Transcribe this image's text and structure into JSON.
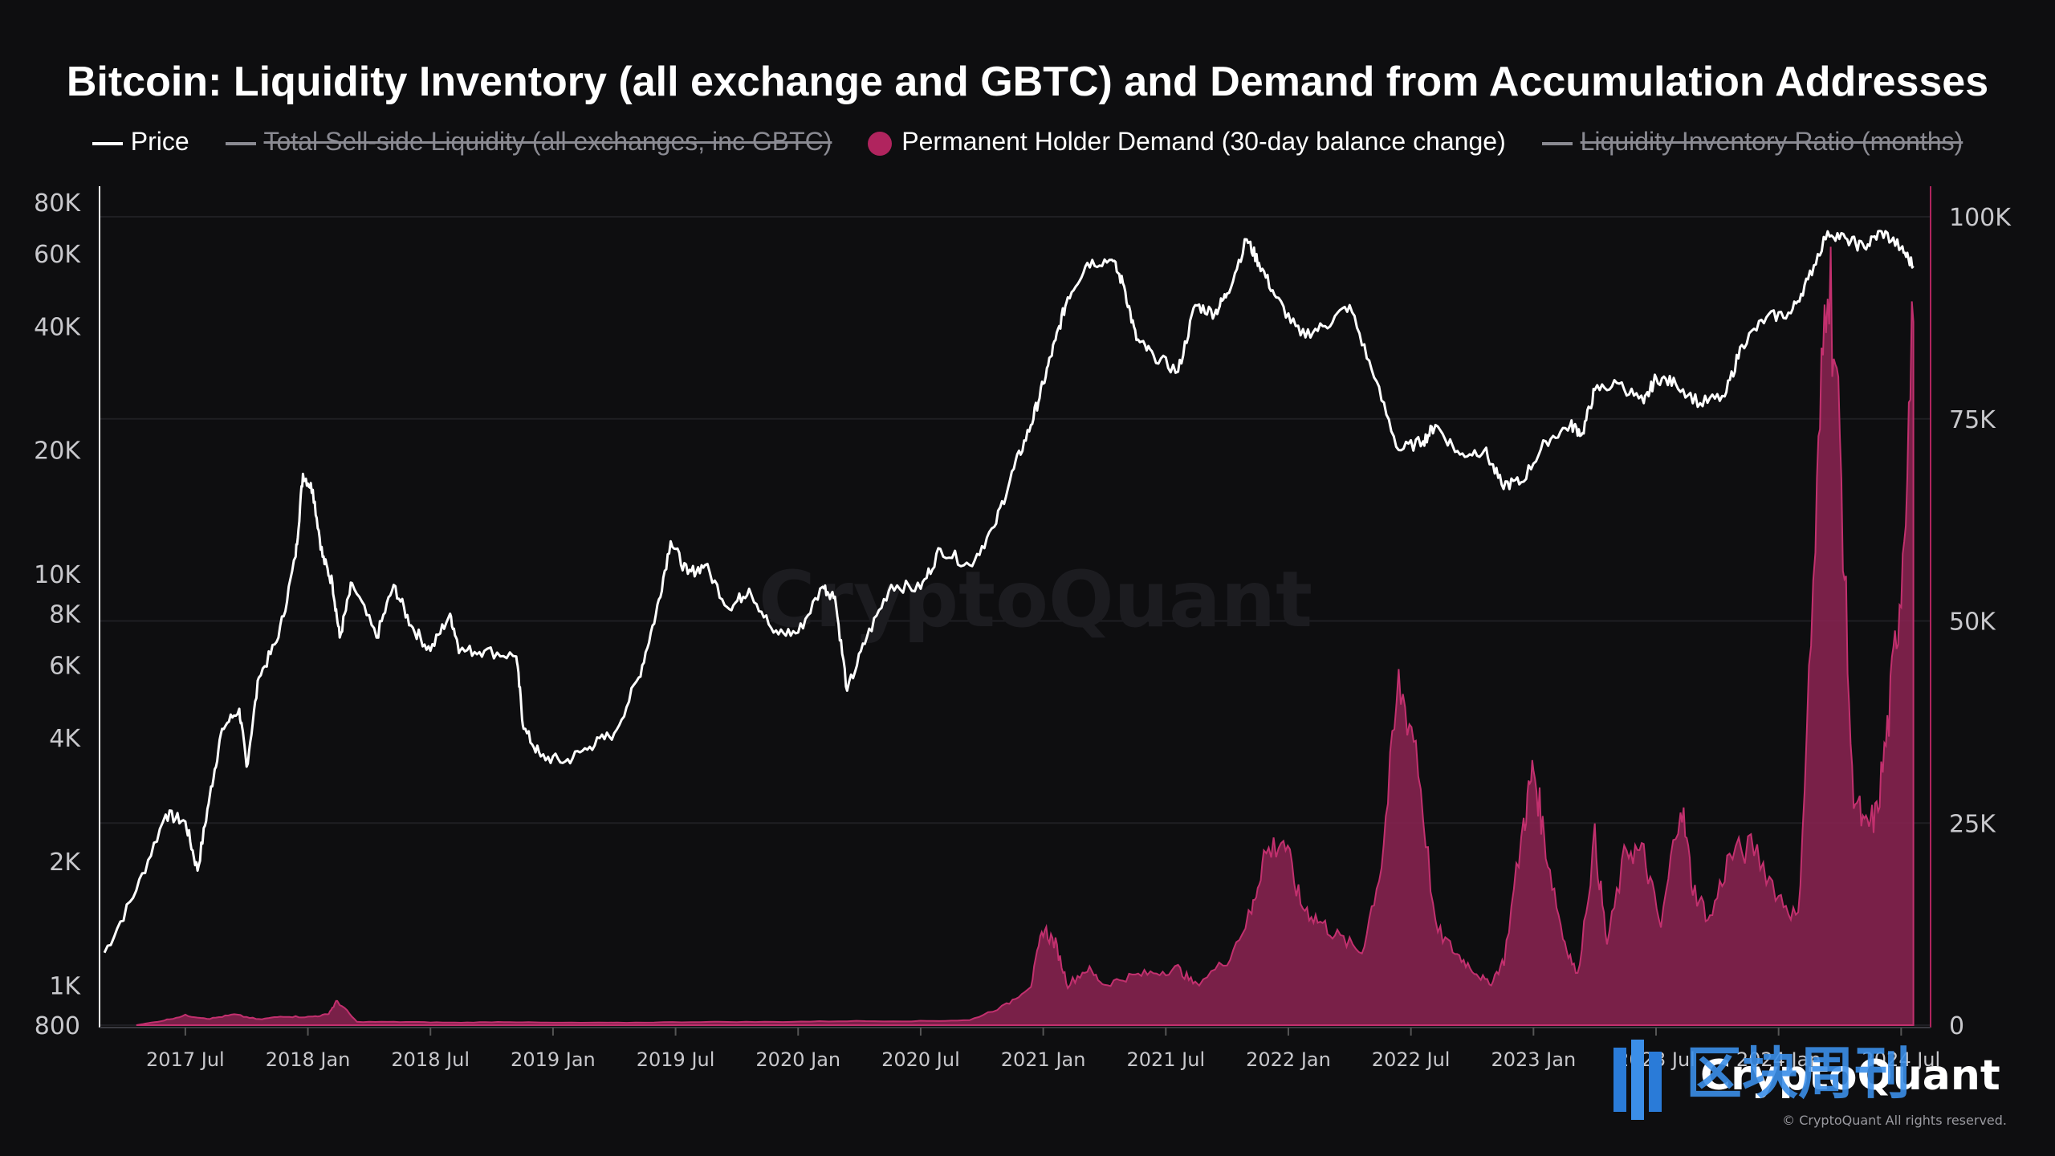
{
  "title": "Bitcoin: Liquidity Inventory (all exchange and GBTC) and Demand from Accumulation Addresses",
  "legend": [
    {
      "label": "Price",
      "color": "#ffffff",
      "style": "line",
      "active": true
    },
    {
      "label": "Total Sell-side Liquidity (all exchanges, inc GBTC)",
      "color": "#8a8a92",
      "style": "line",
      "active": false
    },
    {
      "label": "Permanent Holder Demand (30-day balance change)",
      "color": "#b0245e",
      "style": "dot",
      "active": true
    },
    {
      "label": "Liquidity Inventory Ratio (months)",
      "color": "#8a8a92",
      "style": "line",
      "active": false
    }
  ],
  "watermark": "CryptoQuant",
  "brand": {
    "name": "CryptoQuant",
    "copyright": "© CryptoQuant All rights reserved.",
    "overlay_text": "区块周刊"
  },
  "colors": {
    "background": "#0e0e10",
    "price": "#ffffff",
    "demand_fill": "#8c2352",
    "demand_line": "#c2306e",
    "axis_text": "#c8c8cc",
    "grid": "#1f1f23"
  },
  "chart_data": {
    "type": "line",
    "x_tick_labels": [
      "2017 Jul",
      "2018 Jan",
      "2018 Jul",
      "2019 Jan",
      "2019 Jul",
      "2020 Jan",
      "2020 Jul",
      "2021 Jan",
      "2021 Jul",
      "2022 Jan",
      "2022 Jul",
      "2023 Jan",
      "2023 Jul",
      "2024 Jan",
      "2024 Jul"
    ],
    "x_range": [
      2017.15,
      2024.62
    ],
    "y_left": {
      "scale": "log",
      "range": [
        800,
        80000
      ],
      "tick_labels": [
        "80K",
        "60K",
        "40K",
        "20K",
        "10K",
        "8K",
        "6K",
        "4K",
        "2K",
        "1K",
        "800"
      ],
      "tick_values": [
        80000,
        60000,
        40000,
        20000,
        10000,
        8000,
        6000,
        4000,
        2000,
        1000,
        800
      ]
    },
    "y_right": {
      "scale": "linear",
      "range": [
        0,
        100000
      ],
      "tick_labels": [
        "100K",
        "75K",
        "50K",
        "25K",
        "0"
      ],
      "tick_values": [
        100000,
        75000,
        50000,
        25000,
        0
      ]
    },
    "series": [
      {
        "name": "Price",
        "axis": "left",
        "points": [
          [
            2017.17,
            1200
          ],
          [
            2017.3,
            1700
          ],
          [
            2017.42,
            2600
          ],
          [
            2017.5,
            2500
          ],
          [
            2017.55,
            1900
          ],
          [
            2017.6,
            2900
          ],
          [
            2017.65,
            4200
          ],
          [
            2017.72,
            4700
          ],
          [
            2017.75,
            3400
          ],
          [
            2017.8,
            5600
          ],
          [
            2017.88,
            7000
          ],
          [
            2017.95,
            11000
          ],
          [
            2017.98,
            17500
          ],
          [
            2018.02,
            16000
          ],
          [
            2018.06,
            11000
          ],
          [
            2018.1,
            9500
          ],
          [
            2018.13,
            7000
          ],
          [
            2018.18,
            9500
          ],
          [
            2018.28,
            7000
          ],
          [
            2018.35,
            9400
          ],
          [
            2018.42,
            7500
          ],
          [
            2018.5,
            6500
          ],
          [
            2018.58,
            8000
          ],
          [
            2018.62,
            6500
          ],
          [
            2018.72,
            6500
          ],
          [
            2018.85,
            6300
          ],
          [
            2018.88,
            4200
          ],
          [
            2018.95,
            3600
          ],
          [
            2019.05,
            3500
          ],
          [
            2019.15,
            3800
          ],
          [
            2019.25,
            4100
          ],
          [
            2019.35,
            5600
          ],
          [
            2019.42,
            8000
          ],
          [
            2019.48,
            12000
          ],
          [
            2019.55,
            10000
          ],
          [
            2019.62,
            10500
          ],
          [
            2019.72,
            8200
          ],
          [
            2019.8,
            9200
          ],
          [
            2019.9,
            7200
          ],
          [
            2020.0,
            7200
          ],
          [
            2020.1,
            9300
          ],
          [
            2020.15,
            8800
          ],
          [
            2020.2,
            5200
          ],
          [
            2020.28,
            7000
          ],
          [
            2020.38,
            9400
          ],
          [
            2020.5,
            9200
          ],
          [
            2020.58,
            11500
          ],
          [
            2020.7,
            10500
          ],
          [
            2020.8,
            13000
          ],
          [
            2020.88,
            18000
          ],
          [
            2020.95,
            23000
          ],
          [
            2021.0,
            29000
          ],
          [
            2021.05,
            37000
          ],
          [
            2021.1,
            47000
          ],
          [
            2021.18,
            57000
          ],
          [
            2021.28,
            58000
          ],
          [
            2021.33,
            50000
          ],
          [
            2021.38,
            37000
          ],
          [
            2021.45,
            34000
          ],
          [
            2021.55,
            31000
          ],
          [
            2021.62,
            45000
          ],
          [
            2021.7,
            43000
          ],
          [
            2021.75,
            48000
          ],
          [
            2021.83,
            65000
          ],
          [
            2021.88,
            57000
          ],
          [
            2021.95,
            47000
          ],
          [
            2022.05,
            38000
          ],
          [
            2022.15,
            40000
          ],
          [
            2022.25,
            45000
          ],
          [
            2022.35,
            30000
          ],
          [
            2022.45,
            20000
          ],
          [
            2022.55,
            21000
          ],
          [
            2022.6,
            23000
          ],
          [
            2022.7,
            19500
          ],
          [
            2022.8,
            20000
          ],
          [
            2022.87,
            16500
          ],
          [
            2022.95,
            16700
          ],
          [
            2023.05,
            21000
          ],
          [
            2023.15,
            23000
          ],
          [
            2023.2,
            22000
          ],
          [
            2023.25,
            28000
          ],
          [
            2023.35,
            29000
          ],
          [
            2023.45,
            26000
          ],
          [
            2023.5,
            30000
          ],
          [
            2023.58,
            29000
          ],
          [
            2023.68,
            26000
          ],
          [
            2023.78,
            27000
          ],
          [
            2023.85,
            36000
          ],
          [
            2023.95,
            42000
          ],
          [
            2024.05,
            43000
          ],
          [
            2024.12,
            52000
          ],
          [
            2024.2,
            68000
          ],
          [
            2024.28,
            65000
          ],
          [
            2024.35,
            62000
          ],
          [
            2024.42,
            68000
          ],
          [
            2024.5,
            62000
          ],
          [
            2024.55,
            56000
          ]
        ]
      },
      {
        "name": "Permanent Holder Demand (30-day balance change)",
        "axis": "right",
        "points": [
          [
            2017.3,
            0
          ],
          [
            2017.4,
            500
          ],
          [
            2017.5,
            1200
          ],
          [
            2017.6,
            800
          ],
          [
            2017.7,
            1300
          ],
          [
            2017.8,
            700
          ],
          [
            2017.9,
            1100
          ],
          [
            2018.0,
            1000
          ],
          [
            2018.08,
            1300
          ],
          [
            2018.12,
            3000
          ],
          [
            2018.2,
            400
          ],
          [
            2018.4,
            400
          ],
          [
            2018.6,
            300
          ],
          [
            2018.8,
            400
          ],
          [
            2019.0,
            300
          ],
          [
            2019.3,
            300
          ],
          [
            2019.6,
            400
          ],
          [
            2019.9,
            400
          ],
          [
            2020.2,
            500
          ],
          [
            2020.5,
            500
          ],
          [
            2020.7,
            600
          ],
          [
            2020.85,
            2500
          ],
          [
            2020.95,
            5000
          ],
          [
            2021.0,
            12000
          ],
          [
            2021.05,
            10000
          ],
          [
            2021.1,
            5000
          ],
          [
            2021.18,
            7000
          ],
          [
            2021.25,
            5000
          ],
          [
            2021.35,
            6000
          ],
          [
            2021.45,
            6500
          ],
          [
            2021.55,
            7000
          ],
          [
            2021.62,
            5000
          ],
          [
            2021.75,
            8000
          ],
          [
            2021.85,
            14000
          ],
          [
            2021.9,
            21000
          ],
          [
            2021.98,
            23000
          ],
          [
            2022.05,
            15000
          ],
          [
            2022.12,
            13000
          ],
          [
            2022.2,
            11000
          ],
          [
            2022.3,
            9000
          ],
          [
            2022.38,
            20000
          ],
          [
            2022.45,
            42000
          ],
          [
            2022.52,
            35000
          ],
          [
            2022.6,
            12000
          ],
          [
            2022.68,
            9000
          ],
          [
            2022.75,
            7000
          ],
          [
            2022.82,
            5000
          ],
          [
            2022.88,
            8000
          ],
          [
            2022.96,
            25000
          ],
          [
            2023.0,
            32000
          ],
          [
            2023.05,
            22000
          ],
          [
            2023.12,
            11000
          ],
          [
            2023.18,
            6000
          ],
          [
            2023.25,
            23000
          ],
          [
            2023.3,
            10000
          ],
          [
            2023.38,
            22000
          ],
          [
            2023.45,
            21000
          ],
          [
            2023.52,
            12000
          ],
          [
            2023.6,
            28000
          ],
          [
            2023.65,
            17000
          ],
          [
            2023.72,
            13000
          ],
          [
            2023.8,
            21000
          ],
          [
            2023.9,
            22000
          ],
          [
            2024.0,
            16000
          ],
          [
            2024.08,
            13000
          ],
          [
            2024.15,
            60000
          ],
          [
            2024.2,
            97000
          ],
          [
            2024.25,
            72000
          ],
          [
            2024.3,
            30000
          ],
          [
            2024.35,
            24000
          ],
          [
            2024.4,
            26000
          ],
          [
            2024.45,
            38000
          ],
          [
            2024.5,
            55000
          ],
          [
            2024.55,
            87000
          ]
        ]
      }
    ]
  }
}
